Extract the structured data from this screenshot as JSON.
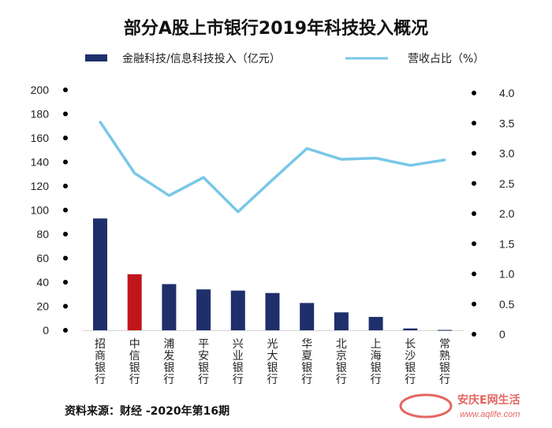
{
  "chart_data": {
    "type": "bar",
    "title": "部分A股上市银行2019年科技投入概况",
    "categories": [
      "招商银行",
      "中信银行",
      "浦发银行",
      "平安银行",
      "兴业银行",
      "光大银行",
      "华夏银行",
      "北京银行",
      "上海银行",
      "长沙银行",
      "常熟银行"
    ],
    "series": [
      {
        "name": "金融科技/信息科技投入（亿元）",
        "type": "bar",
        "axis": "left",
        "values": [
          93,
          46.6,
          38.4,
          34,
          33,
          31,
          22.7,
          14.9,
          11.1,
          1.5,
          0.3
        ],
        "colors": [
          "#1f2f6b",
          "#c0161b",
          "#1f2f6b",
          "#1f2f6b",
          "#1f2f6b",
          "#1f2f6b",
          "#1f2f6b",
          "#1f2f6b",
          "#1f2f6b",
          "#1f2f6b",
          "#1f2f6b"
        ]
      },
      {
        "name": "营收占比（%）",
        "type": "line",
        "axis": "right",
        "color": "#79c7e8",
        "values": [
          3.52,
          2.67,
          2.3,
          2.6,
          2.03,
          2.56,
          3.08,
          2.9,
          2.92,
          2.8,
          2.89
        ]
      }
    ],
    "y_left": {
      "ylim": [
        0,
        200
      ],
      "ticks": [
        "200",
        "180",
        "160",
        "140",
        "120",
        "100",
        "80",
        "60",
        "40",
        "20",
        "0"
      ]
    },
    "y_right": {
      "ylim": [
        0,
        4.0
      ],
      "ticks": [
        "4.0",
        "3.5",
        "3.0",
        "2.5",
        "2.0",
        "1.5",
        "1.0",
        "0.5",
        "0"
      ]
    },
    "legend": {
      "placement": "top",
      "bar_label": "金融科技/信息科技投入（亿元）",
      "line_label": "营收占比（%）"
    },
    "source": "资料来源：财经 -2020年第16期",
    "grid": false
  },
  "watermark": {
    "text": "安庆E网生活",
    "url": "www.aqlife.com"
  },
  "colors": {
    "bar": "#1f2f6b",
    "highlight": "#c0161b",
    "line": "#79c7e8"
  }
}
